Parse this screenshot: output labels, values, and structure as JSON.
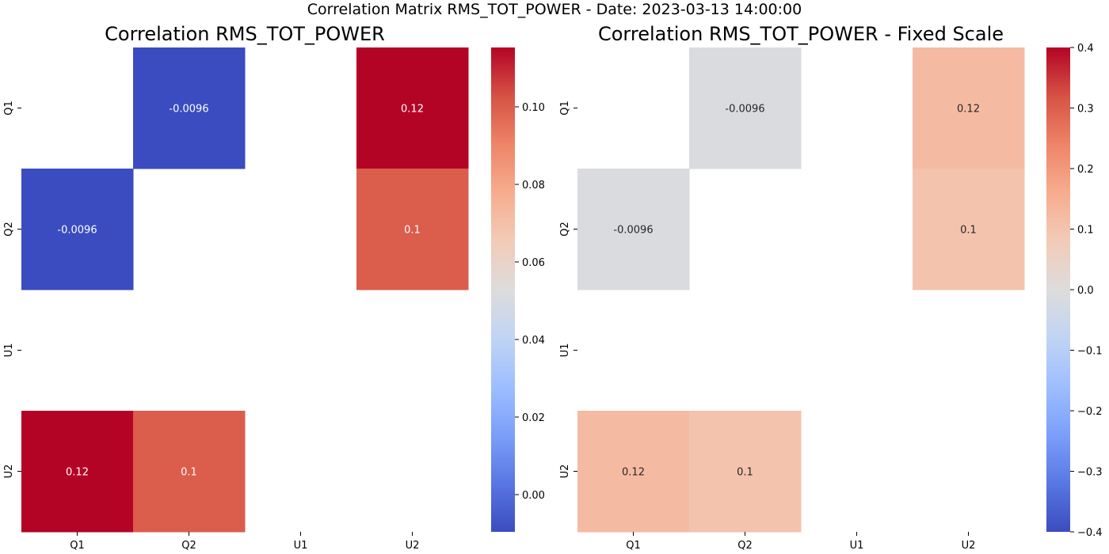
{
  "suptitle": "Correlation Matrix RMS_TOT_POWER - Date: 2023-03-13 14:00:00",
  "chart_data": [
    {
      "type": "heatmap",
      "title": "Correlation RMS_TOT_POWER",
      "colormap": "coolwarm",
      "row_labels": [
        "Q1",
        "Q2",
        "U1",
        "U2"
      ],
      "col_labels": [
        "Q1",
        "Q2",
        "U1",
        "U2"
      ],
      "values": [
        [
          null,
          -0.0096,
          null,
          0.12
        ],
        [
          -0.0096,
          null,
          null,
          0.1
        ],
        [
          null,
          null,
          null,
          null
        ],
        [
          0.12,
          0.1,
          null,
          null
        ]
      ],
      "annotations": [
        [
          "",
          "-0.0096",
          "",
          "0.12"
        ],
        [
          "-0.0096",
          "",
          "",
          "0.1"
        ],
        [
          "",
          "",
          "",
          ""
        ],
        [
          "0.12",
          "0.1",
          "",
          ""
        ]
      ],
      "vmin": -0.0096,
      "vmax": 0.1153,
      "colorbar_ticks": [
        0.0,
        0.02,
        0.04,
        0.06,
        0.08,
        0.1
      ],
      "colorbar_tick_labels": [
        "0.00",
        "0.02",
        "0.04",
        "0.06",
        "0.08",
        "0.10"
      ]
    },
    {
      "type": "heatmap",
      "title": "Correlation RMS_TOT_POWER - Fixed Scale",
      "colormap": "coolwarm",
      "row_labels": [
        "Q1",
        "Q2",
        "U1",
        "U2"
      ],
      "col_labels": [
        "Q1",
        "Q2",
        "U1",
        "U2"
      ],
      "values": [
        [
          null,
          -0.0096,
          null,
          0.12
        ],
        [
          -0.0096,
          null,
          null,
          0.1
        ],
        [
          null,
          null,
          null,
          null
        ],
        [
          0.12,
          0.1,
          null,
          null
        ]
      ],
      "annotations": [
        [
          "",
          "-0.0096",
          "",
          "0.12"
        ],
        [
          "-0.0096",
          "",
          "",
          "0.1"
        ],
        [
          "",
          "",
          "",
          ""
        ],
        [
          "0.12",
          "0.1",
          "",
          ""
        ]
      ],
      "vmin": -0.4,
      "vmax": 0.4,
      "colorbar_ticks": [
        -0.4,
        -0.3,
        -0.2,
        -0.1,
        0.0,
        0.1,
        0.2,
        0.3,
        0.4
      ],
      "colorbar_tick_labels": [
        "−0.4",
        "−0.3",
        "−0.2",
        "−0.1",
        "0.0",
        "0.1",
        "0.2",
        "0.3",
        "0.4"
      ]
    }
  ]
}
